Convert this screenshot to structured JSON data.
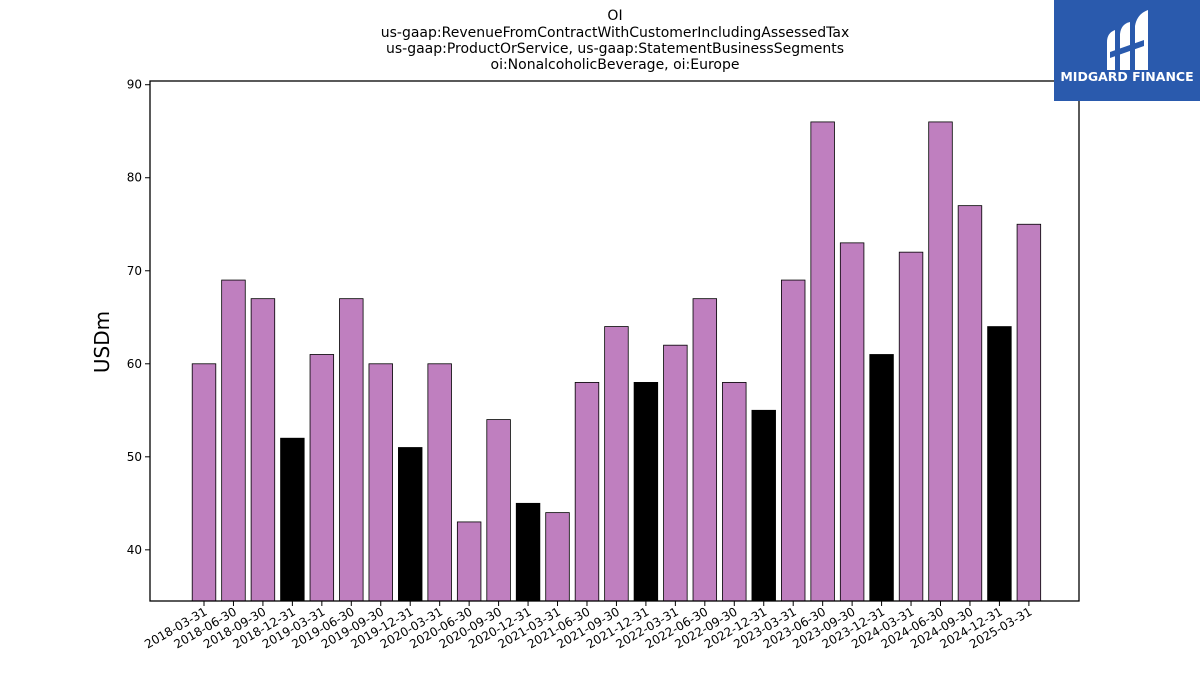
{
  "chart_data": {
    "type": "bar",
    "title_lines": [
      "OI",
      "us-gaap:RevenueFromContractWithCustomerIncludingAssessedTax",
      "us-gaap:ProductOrService, us-gaap:StatementBusinessSegments",
      "oi:NonalcoholicBeverage, oi:Europe"
    ],
    "xlabel": "",
    "ylabel": "USDm",
    "ylim": [
      34.5,
      90.4
    ],
    "yticks": [
      40,
      50,
      60,
      70,
      80,
      90
    ],
    "grid": false,
    "categories": [
      "2018-03-31",
      "2018-06-30",
      "2018-09-30",
      "2018-12-31",
      "2019-03-31",
      "2019-06-30",
      "2019-09-30",
      "2019-12-31",
      "2020-03-31",
      "2020-06-30",
      "2020-09-30",
      "2020-12-31",
      "2021-03-31",
      "2021-06-30",
      "2021-09-30",
      "2021-12-31",
      "2022-03-31",
      "2022-06-30",
      "2022-09-30",
      "2022-12-31",
      "2023-03-31",
      "2023-06-30",
      "2023-09-30",
      "2023-12-31",
      "2024-03-31",
      "2024-06-30",
      "2024-09-30",
      "2024-12-31",
      "2025-03-31"
    ],
    "values": [
      60,
      69,
      67,
      52,
      61,
      67,
      60,
      51,
      60,
      43,
      54,
      45,
      44,
      58,
      64,
      58,
      62,
      67,
      58,
      55,
      69,
      86,
      73,
      61,
      72,
      86,
      77,
      64,
      75
    ],
    "colors": {
      "quarter": "#bf7fbf",
      "year_end": "#000000",
      "edge": "#000000"
    }
  },
  "logo": {
    "text": "MIDGARD FINANCE",
    "background": "#2a5aad"
  }
}
